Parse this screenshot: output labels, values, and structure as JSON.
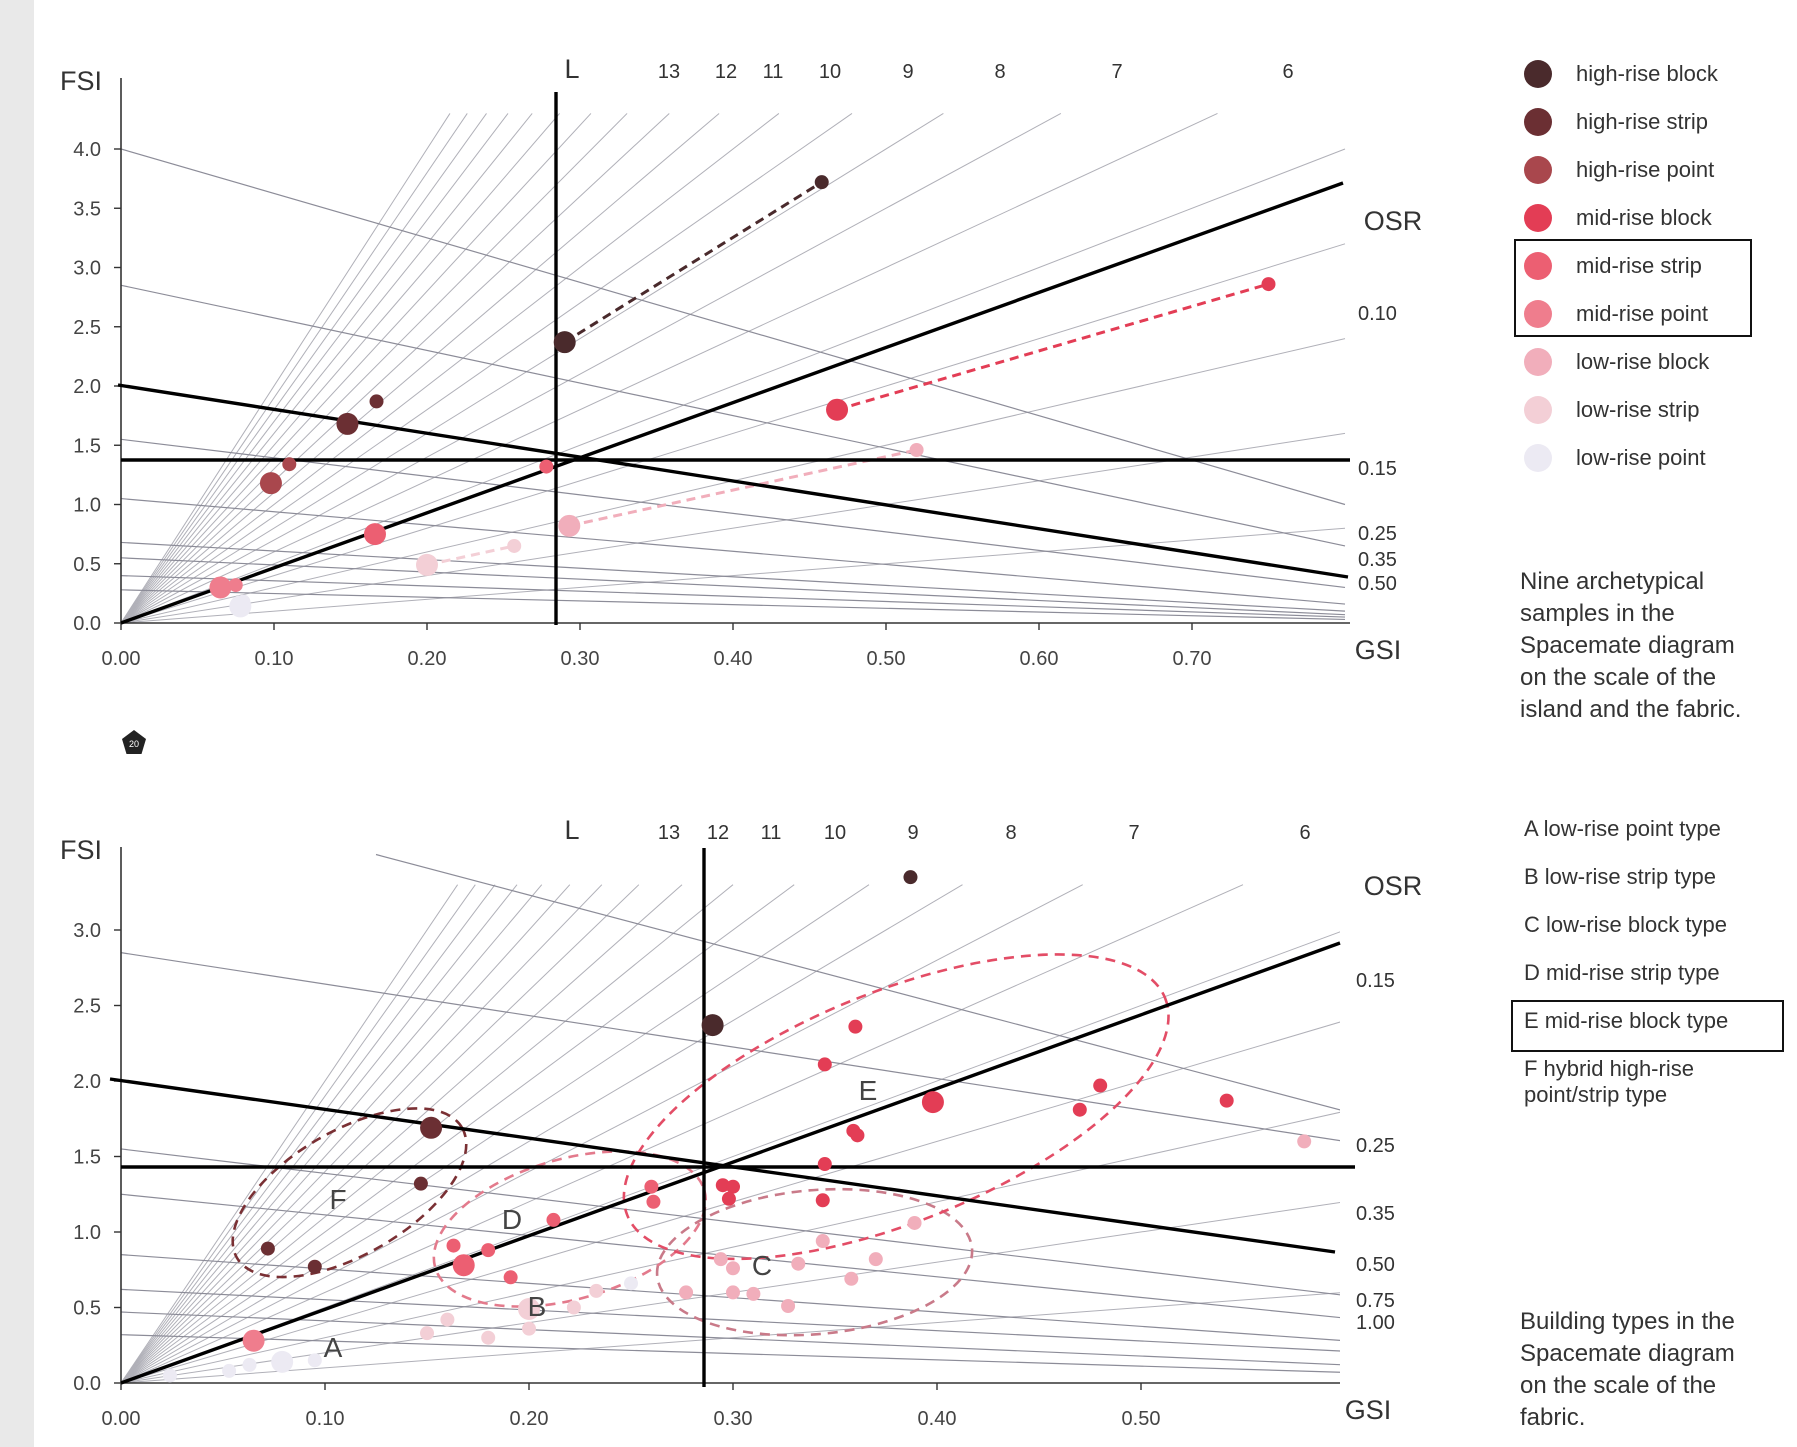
{
  "legend": {
    "items": [
      {
        "label": "high-rise block",
        "color": "#4a2a2c"
      },
      {
        "label": "high-rise strip",
        "color": "#6b2f33"
      },
      {
        "label": "high-rise point",
        "color": "#a9474d"
      },
      {
        "label": "mid-rise block",
        "color": "#e33d55"
      },
      {
        "label": "mid-rise strip",
        "color": "#ec5f72"
      },
      {
        "label": "mid-rise point",
        "color": "#ef7d8d"
      },
      {
        "label": "low-rise block",
        "color": "#f1aebb"
      },
      {
        "label": "low-rise strip",
        "color": "#f3cfd6"
      },
      {
        "label": "low-rise point",
        "color": "#eceaf3"
      }
    ],
    "caption": "Nine archetypical samples in the Spacemate diagram on the scale of the island and the fabric."
  },
  "types_legend": {
    "items": [
      "A  low-rise point type",
      "B  low-rise strip type",
      "C  low-rise block type",
      "D  mid-rise strip type",
      "E  mid-rise block type",
      "F  hybrid high-rise point/strip type"
    ],
    "caption": "Building types in the Spacemate diagram on the scale of the fabric."
  },
  "page_marker": "20",
  "chart_data": [
    {
      "type": "scatter",
      "xlabel": "GSI",
      "ylabel": "FSI",
      "xlim": [
        0,
        0.8
      ],
      "ylim": [
        0,
        4.5
      ],
      "xticks": [
        "0.00",
        "0.10",
        "0.20",
        "0.30",
        "0.40",
        "0.50",
        "0.60",
        "0.70"
      ],
      "yticks": [
        "0.0",
        "0.5",
        "1.0",
        "1.5",
        "2.0",
        "2.5",
        "3.0",
        "3.5",
        "4.0"
      ],
      "layer_label": "L",
      "layer_ticks": [
        "13",
        "12",
        "11",
        "10",
        "9",
        "8",
        "7",
        "6"
      ],
      "osr_label": "OSR",
      "osr_ticks": [
        "0.10",
        "0.15",
        "0.25",
        "0.35",
        "0.50"
      ],
      "points": [
        {
          "x": 0.458,
          "y": 3.72,
          "c": "#4a2a2c",
          "s": 7
        },
        {
          "x": 0.29,
          "y": 2.37,
          "c": "#4a2a2c",
          "s": 11
        },
        {
          "x": 0.148,
          "y": 1.68,
          "c": "#6b2f33",
          "s": 11
        },
        {
          "x": 0.167,
          "y": 1.87,
          "c": "#6b2f33",
          "s": 7
        },
        {
          "x": 0.098,
          "y": 1.18,
          "c": "#a9474d",
          "s": 11
        },
        {
          "x": 0.11,
          "y": 1.34,
          "c": "#a9474d",
          "s": 7
        },
        {
          "x": 0.75,
          "y": 2.86,
          "c": "#e33d55",
          "s": 7
        },
        {
          "x": 0.468,
          "y": 1.8,
          "c": "#e33d55",
          "s": 11
        },
        {
          "x": 0.166,
          "y": 0.75,
          "c": "#ec5f72",
          "s": 11
        },
        {
          "x": 0.278,
          "y": 1.32,
          "c": "#ec5f72",
          "s": 7
        },
        {
          "x": 0.065,
          "y": 0.3,
          "c": "#ef7d8d",
          "s": 11
        },
        {
          "x": 0.075,
          "y": 0.32,
          "c": "#ef7d8d",
          "s": 7
        },
        {
          "x": 0.52,
          "y": 1.46,
          "c": "#f1aebb",
          "s": 7
        },
        {
          "x": 0.293,
          "y": 0.82,
          "c": "#f1aebb",
          "s": 11
        },
        {
          "x": 0.257,
          "y": 0.65,
          "c": "#f3cfd6",
          "s": 7
        },
        {
          "x": 0.2,
          "y": 0.49,
          "c": "#f3cfd6",
          "s": 11
        },
        {
          "x": 0.08,
          "y": 0.18,
          "c": "#eceaf3",
          "s": 7
        },
        {
          "x": 0.078,
          "y": 0.14,
          "c": "#eceaf3",
          "s": 11
        }
      ]
    },
    {
      "type": "scatter",
      "xlabel": "GSI",
      "ylabel": "FSI",
      "xlim": [
        0,
        0.6
      ],
      "ylim": [
        0,
        3.5
      ],
      "xticks": [
        "0.00",
        "0.10",
        "0.20",
        "0.30",
        "0.40",
        "0.50"
      ],
      "yticks": [
        "0.0",
        "0.5",
        "1.0",
        "1.5",
        "2.0",
        "2.5",
        "3.0"
      ],
      "layer_label": "L",
      "layer_ticks": [
        "13",
        "12",
        "11",
        "10",
        "9",
        "8",
        "7",
        "6"
      ],
      "osr_label": "OSR",
      "osr_ticks": [
        "0.15",
        "0.25",
        "0.35",
        "0.50",
        "0.75",
        "1.00"
      ],
      "region_labels": [
        "A",
        "B",
        "C",
        "D",
        "E",
        "F"
      ],
      "points": [
        {
          "x": 0.387,
          "y": 3.35,
          "c": "#4a2a2c",
          "s": 7
        },
        {
          "x": 0.29,
          "y": 2.37,
          "c": "#4a2a2c",
          "s": 11
        },
        {
          "x": 0.152,
          "y": 1.69,
          "c": "#6b2f33",
          "s": 11
        },
        {
          "x": 0.147,
          "y": 1.32,
          "c": "#6b2f33",
          "s": 7
        },
        {
          "x": 0.072,
          "y": 0.89,
          "c": "#6b2f33",
          "s": 7
        },
        {
          "x": 0.095,
          "y": 0.77,
          "c": "#6b2f33",
          "s": 7
        },
        {
          "x": 0.36,
          "y": 2.36,
          "c": "#e33d55",
          "s": 7
        },
        {
          "x": 0.345,
          "y": 2.11,
          "c": "#e33d55",
          "s": 7
        },
        {
          "x": 0.398,
          "y": 1.86,
          "c": "#e33d55",
          "s": 11
        },
        {
          "x": 0.48,
          "y": 1.97,
          "c": "#e33d55",
          "s": 7
        },
        {
          "x": 0.47,
          "y": 1.81,
          "c": "#e33d55",
          "s": 7
        },
        {
          "x": 0.542,
          "y": 1.87,
          "c": "#e33d55",
          "s": 7
        },
        {
          "x": 0.359,
          "y": 1.67,
          "c": "#e33d55",
          "s": 7
        },
        {
          "x": 0.361,
          "y": 1.64,
          "c": "#e33d55",
          "s": 7
        },
        {
          "x": 0.345,
          "y": 1.45,
          "c": "#e33d55",
          "s": 7
        },
        {
          "x": 0.344,
          "y": 1.21,
          "c": "#e33d55",
          "s": 7
        },
        {
          "x": 0.295,
          "y": 1.31,
          "c": "#e33d55",
          "s": 7
        },
        {
          "x": 0.3,
          "y": 1.3,
          "c": "#e33d55",
          "s": 7
        },
        {
          "x": 0.298,
          "y": 1.22,
          "c": "#e33d55",
          "s": 7
        },
        {
          "x": 0.26,
          "y": 1.3,
          "c": "#ec5f72",
          "s": 7
        },
        {
          "x": 0.261,
          "y": 1.2,
          "c": "#ec5f72",
          "s": 7
        },
        {
          "x": 0.212,
          "y": 1.08,
          "c": "#ec5f72",
          "s": 7
        },
        {
          "x": 0.163,
          "y": 0.91,
          "c": "#ec5f72",
          "s": 7
        },
        {
          "x": 0.18,
          "y": 0.88,
          "c": "#ec5f72",
          "s": 7
        },
        {
          "x": 0.168,
          "y": 0.78,
          "c": "#ec5f72",
          "s": 11
        },
        {
          "x": 0.191,
          "y": 0.7,
          "c": "#ec5f72",
          "s": 7
        },
        {
          "x": 0.065,
          "y": 0.28,
          "c": "#ef7d8d",
          "s": 11
        },
        {
          "x": 0.58,
          "y": 1.6,
          "c": "#f1aebb",
          "s": 7
        },
        {
          "x": 0.389,
          "y": 1.06,
          "c": "#f1aebb",
          "s": 7
        },
        {
          "x": 0.344,
          "y": 0.94,
          "c": "#f1aebb",
          "s": 7
        },
        {
          "x": 0.37,
          "y": 0.82,
          "c": "#f1aebb",
          "s": 7
        },
        {
          "x": 0.332,
          "y": 0.79,
          "c": "#f1aebb",
          "s": 7
        },
        {
          "x": 0.294,
          "y": 0.82,
          "c": "#f1aebb",
          "s": 7
        },
        {
          "x": 0.3,
          "y": 0.76,
          "c": "#f1aebb",
          "s": 7
        },
        {
          "x": 0.358,
          "y": 0.69,
          "c": "#f1aebb",
          "s": 7
        },
        {
          "x": 0.3,
          "y": 0.6,
          "c": "#f1aebb",
          "s": 7
        },
        {
          "x": 0.31,
          "y": 0.59,
          "c": "#f1aebb",
          "s": 7
        },
        {
          "x": 0.327,
          "y": 0.51,
          "c": "#f1aebb",
          "s": 7
        },
        {
          "x": 0.277,
          "y": 0.6,
          "c": "#f1aebb",
          "s": 7
        },
        {
          "x": 0.233,
          "y": 0.61,
          "c": "#f3cfd6",
          "s": 7
        },
        {
          "x": 0.222,
          "y": 0.5,
          "c": "#f3cfd6",
          "s": 7
        },
        {
          "x": 0.2,
          "y": 0.49,
          "c": "#f3cfd6",
          "s": 11
        },
        {
          "x": 0.2,
          "y": 0.36,
          "c": "#f3cfd6",
          "s": 7
        },
        {
          "x": 0.16,
          "y": 0.42,
          "c": "#f3cfd6",
          "s": 7
        },
        {
          "x": 0.18,
          "y": 0.3,
          "c": "#f3cfd6",
          "s": 7
        },
        {
          "x": 0.15,
          "y": 0.33,
          "c": "#f3cfd6",
          "s": 7
        },
        {
          "x": 0.25,
          "y": 0.66,
          "c": "#eceaf3",
          "s": 7
        },
        {
          "x": 0.079,
          "y": 0.14,
          "c": "#eceaf3",
          "s": 11
        },
        {
          "x": 0.063,
          "y": 0.12,
          "c": "#eceaf3",
          "s": 7
        },
        {
          "x": 0.053,
          "y": 0.08,
          "c": "#eceaf3",
          "s": 7
        },
        {
          "x": 0.095,
          "y": 0.15,
          "c": "#eceaf3",
          "s": 7
        },
        {
          "x": 0.024,
          "y": 0.05,
          "c": "#eceaf3",
          "s": 7
        }
      ]
    }
  ]
}
